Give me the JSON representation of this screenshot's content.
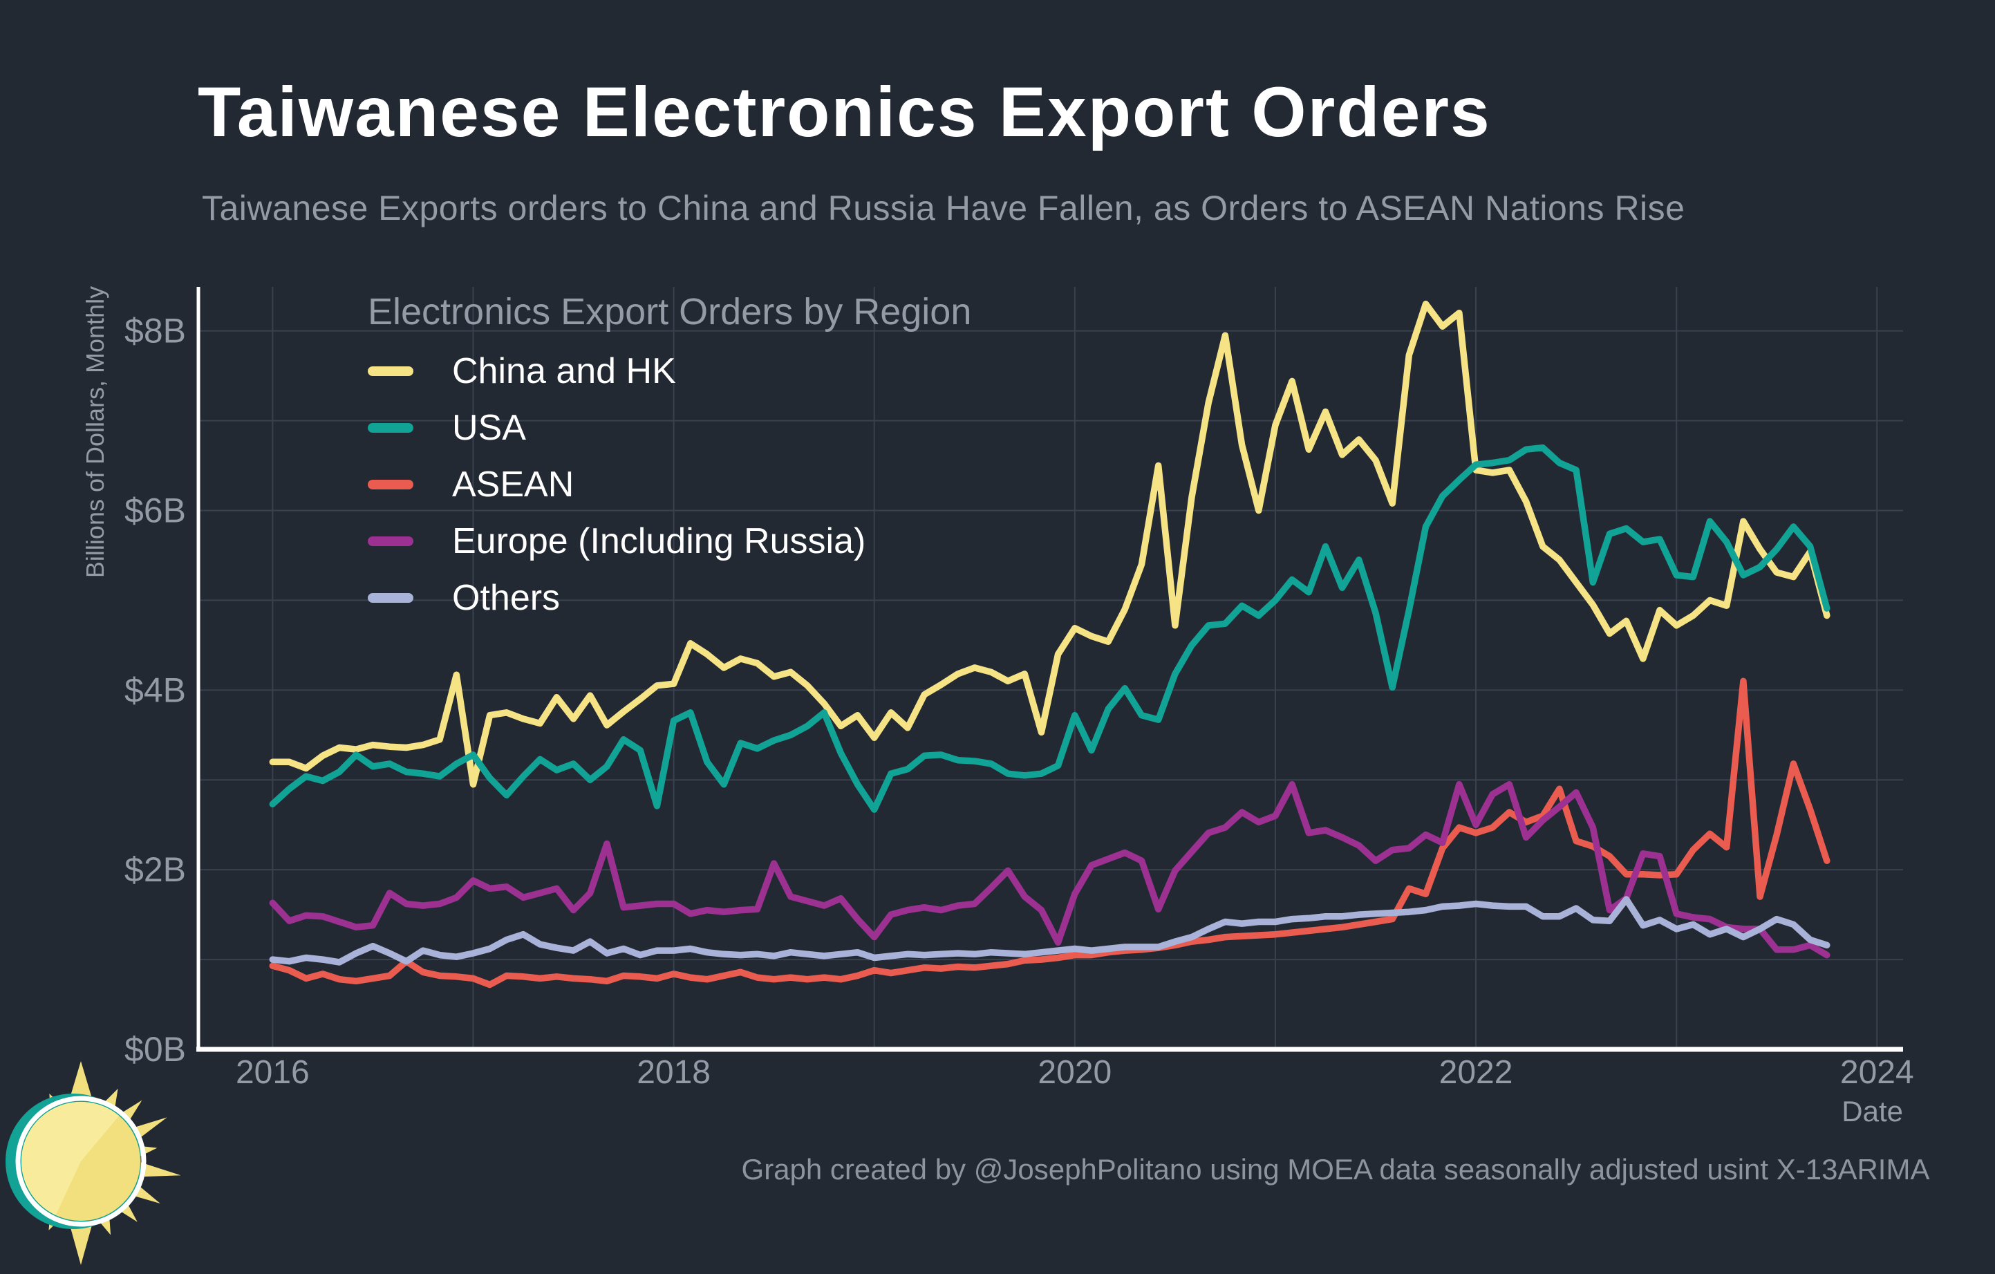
{
  "page": {
    "title": "Taiwanese Electronics Export Orders",
    "subtitle": "Taiwanese Exports orders to China and Russia Have Fallen, as Orders to ASEAN Nations Rise",
    "footer_credit": "Graph created by @JosephPolitano using MOEA data seasonally adjusted usint X-13ARIMA",
    "background_color": "#232933",
    "text_gray_color": "#949BA7"
  },
  "chart_data": {
    "type": "line",
    "title": "Electronics Export Orders by Region",
    "xlabel": "Date",
    "ylabel": "Billions of Dollars, Monthly",
    "x_tick_labels": [
      "2016",
      "2018",
      "2020",
      "2022",
      "2024"
    ],
    "x_tick_values": [
      2016,
      2018,
      2020,
      2022,
      2024
    ],
    "y_tick_labels": [
      "$0B",
      "$2B",
      "$4B",
      "$6B",
      "$8B"
    ],
    "y_tick_values": [
      0,
      2,
      4,
      6,
      8
    ],
    "xlim": [
      2015.63,
      2024.13
    ],
    "ylim": [
      0,
      8.49
    ],
    "grid": true,
    "gridline_years": [
      2016,
      2017,
      2018,
      2019,
      2020,
      2021,
      2022,
      2023,
      2024
    ],
    "gridline_billions": [
      1,
      2,
      3,
      4,
      5,
      6,
      7,
      8
    ],
    "legend_position": "top-left-inside",
    "x_start": 2016.0,
    "x_step": 0.0833333,
    "x_unit": "month",
    "line_width": 9.5,
    "series": [
      {
        "name": "China and HK",
        "color": "#F6E385",
        "values": [
          3.2,
          3.2,
          3.13,
          3.27,
          3.36,
          3.34,
          3.39,
          3.37,
          3.36,
          3.39,
          3.45,
          4.17,
          2.95,
          3.72,
          3.75,
          3.68,
          3.63,
          3.92,
          3.68,
          3.94,
          3.61,
          3.76,
          3.9,
          4.05,
          4.07,
          4.52,
          4.4,
          4.25,
          4.35,
          4.3,
          4.15,
          4.2,
          4.05,
          3.85,
          3.6,
          3.72,
          3.47,
          3.75,
          3.58,
          3.95,
          4.06,
          4.18,
          4.25,
          4.2,
          4.1,
          4.18,
          3.53,
          4.4,
          4.69,
          4.6,
          4.54,
          4.9,
          5.4,
          6.5,
          4.72,
          6.15,
          7.2,
          7.95,
          6.73,
          6.0,
          6.95,
          7.44,
          6.68,
          7.1,
          6.62,
          6.79,
          6.56,
          6.08,
          7.73,
          8.3,
          8.05,
          8.2,
          6.45,
          6.42,
          6.45,
          6.1,
          5.6,
          5.45,
          5.2,
          4.95,
          4.63,
          4.77,
          4.35,
          4.89,
          4.72,
          4.83,
          5.0,
          4.94,
          5.88,
          5.57,
          5.31,
          5.26,
          5.54,
          4.83
        ]
      },
      {
        "name": "USA",
        "color": "#10A396",
        "values": [
          2.73,
          2.9,
          3.04,
          2.99,
          3.09,
          3.28,
          3.15,
          3.18,
          3.09,
          3.07,
          3.04,
          3.18,
          3.28,
          3.02,
          2.83,
          3.04,
          3.23,
          3.11,
          3.18,
          3.0,
          3.15,
          3.45,
          3.33,
          2.71,
          3.66,
          3.75,
          3.2,
          2.95,
          3.41,
          3.35,
          3.44,
          3.5,
          3.6,
          3.75,
          3.3,
          2.95,
          2.67,
          3.07,
          3.12,
          3.27,
          3.28,
          3.22,
          3.21,
          3.18,
          3.07,
          3.05,
          3.07,
          3.16,
          3.72,
          3.33,
          3.79,
          4.02,
          3.72,
          3.67,
          4.18,
          4.5,
          4.72,
          4.74,
          4.94,
          4.83,
          5.0,
          5.23,
          5.09,
          5.6,
          5.14,
          5.45,
          4.86,
          4.03,
          4.89,
          5.82,
          6.16,
          6.34,
          6.51,
          6.53,
          6.56,
          6.68,
          6.7,
          6.53,
          6.45,
          5.2,
          5.74,
          5.8,
          5.65,
          5.68,
          5.28,
          5.26,
          5.88,
          5.65,
          5.28,
          5.37,
          5.57,
          5.82,
          5.6,
          4.91
        ]
      },
      {
        "name": "ASEAN",
        "color": "#EA5C4F",
        "values": [
          0.93,
          0.88,
          0.79,
          0.84,
          0.78,
          0.76,
          0.79,
          0.82,
          0.98,
          0.86,
          0.82,
          0.81,
          0.79,
          0.72,
          0.82,
          0.81,
          0.79,
          0.81,
          0.79,
          0.78,
          0.76,
          0.82,
          0.81,
          0.79,
          0.84,
          0.8,
          0.78,
          0.82,
          0.86,
          0.8,
          0.78,
          0.8,
          0.78,
          0.8,
          0.78,
          0.82,
          0.88,
          0.85,
          0.88,
          0.91,
          0.9,
          0.92,
          0.91,
          0.93,
          0.95,
          0.99,
          1.0,
          1.02,
          1.05,
          1.05,
          1.08,
          1.1,
          1.11,
          1.13,
          1.16,
          1.2,
          1.22,
          1.25,
          1.26,
          1.27,
          1.28,
          1.3,
          1.32,
          1.34,
          1.36,
          1.39,
          1.42,
          1.45,
          1.79,
          1.73,
          2.24,
          2.47,
          2.41,
          2.47,
          2.64,
          2.53,
          2.6,
          2.9,
          2.32,
          2.26,
          2.15,
          1.95,
          1.95,
          1.94,
          1.95,
          2.22,
          2.4,
          2.25,
          4.1,
          1.7,
          2.39,
          3.18,
          2.67,
          2.1
        ]
      },
      {
        "name": "Europe (Including Russia)",
        "color": "#9C3192",
        "values": [
          1.63,
          1.43,
          1.49,
          1.48,
          1.42,
          1.36,
          1.38,
          1.74,
          1.62,
          1.6,
          1.62,
          1.69,
          1.88,
          1.79,
          1.81,
          1.69,
          1.74,
          1.79,
          1.55,
          1.74,
          2.29,
          1.58,
          1.6,
          1.62,
          1.62,
          1.51,
          1.55,
          1.53,
          1.55,
          1.56,
          2.07,
          1.7,
          1.65,
          1.6,
          1.68,
          1.45,
          1.25,
          1.5,
          1.55,
          1.58,
          1.55,
          1.6,
          1.62,
          1.8,
          1.99,
          1.7,
          1.55,
          1.19,
          1.73,
          2.05,
          2.12,
          2.19,
          2.1,
          1.56,
          1.99,
          2.2,
          2.41,
          2.47,
          2.64,
          2.53,
          2.6,
          2.95,
          2.41,
          2.44,
          2.36,
          2.27,
          2.1,
          2.22,
          2.24,
          2.39,
          2.3,
          2.95,
          2.5,
          2.84,
          2.95,
          2.36,
          2.55,
          2.7,
          2.86,
          2.47,
          1.55,
          1.68,
          2.18,
          2.15,
          1.51,
          1.47,
          1.45,
          1.36,
          1.34,
          1.34,
          1.11,
          1.11,
          1.16,
          1.05
        ]
      },
      {
        "name": "Others",
        "color": "#A9B2D8",
        "values": [
          1.0,
          0.98,
          1.02,
          1.0,
          0.97,
          1.07,
          1.15,
          1.07,
          0.98,
          1.1,
          1.05,
          1.03,
          1.07,
          1.12,
          1.22,
          1.28,
          1.17,
          1.13,
          1.1,
          1.2,
          1.07,
          1.12,
          1.05,
          1.1,
          1.1,
          1.12,
          1.08,
          1.06,
          1.05,
          1.06,
          1.04,
          1.08,
          1.06,
          1.04,
          1.06,
          1.08,
          1.02,
          1.04,
          1.06,
          1.05,
          1.06,
          1.07,
          1.06,
          1.08,
          1.07,
          1.06,
          1.08,
          1.1,
          1.12,
          1.1,
          1.12,
          1.14,
          1.14,
          1.14,
          1.2,
          1.25,
          1.34,
          1.42,
          1.4,
          1.42,
          1.42,
          1.45,
          1.46,
          1.48,
          1.48,
          1.5,
          1.51,
          1.52,
          1.53,
          1.55,
          1.59,
          1.6,
          1.62,
          1.6,
          1.59,
          1.59,
          1.48,
          1.48,
          1.57,
          1.44,
          1.43,
          1.67,
          1.38,
          1.44,
          1.34,
          1.39,
          1.28,
          1.34,
          1.25,
          1.34,
          1.45,
          1.39,
          1.22,
          1.16
        ]
      }
    ]
  },
  "logo": {
    "name": "sun-logo",
    "disc_color": "#F2DF7D",
    "wedge_color": "#F8EC9C",
    "ring_color": "#ffffff",
    "back_circle_color": "#12A296"
  }
}
